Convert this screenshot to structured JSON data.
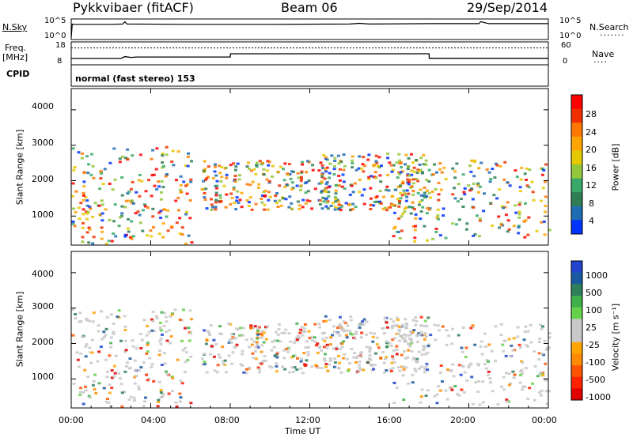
{
  "header": {
    "radar_title": "Pykkvibaer (fitACF)",
    "beam": "Beam 06",
    "date": "29/Sep/2014"
  },
  "summary_panels": {
    "nsky_label": "N.Sky",
    "nsky_ticks": [
      "10^5",
      "10^0"
    ],
    "nsearch_label": "N.Search",
    "nsearch_ticks": [
      "10^5",
      "10^0"
    ],
    "freq_label_1": "Freq.",
    "freq_label_2": "[MHz]",
    "freq_ticks": [
      "18",
      "8"
    ],
    "nave_label": "Nave",
    "nave_ticks": [
      "60",
      "0"
    ],
    "cpid_label": "CPID",
    "cpid_text": "normal (fast stereo) 153"
  },
  "colorbars": {
    "power": {
      "label": "Power [dB]",
      "ticks": [
        "28",
        "24",
        "20",
        "16",
        "12",
        "8",
        "4"
      ],
      "colors": [
        "#ff0000",
        "#f03000",
        "#ff7700",
        "#ffa500",
        "#e6c800",
        "#93c73b",
        "#3aa86a",
        "#2e7d55",
        "#1e6cb4",
        "#0033ff"
      ]
    },
    "velocity": {
      "label": "Velocity [m s⁻¹]",
      "ticks": [
        "1000",
        "500",
        "100",
        "25",
        "-25",
        "-100",
        "-500",
        "-1000"
      ],
      "colors": [
        "#2244cc",
        "#1a5aa0",
        "#2f7f5a",
        "#3fb04a",
        "#66d14a",
        "#c8c8c8",
        "#c8c8c8",
        "#ffa500",
        "#ff8c00",
        "#ff5500",
        "#ff2200",
        "#e00000"
      ]
    }
  },
  "chart_data": [
    {
      "type": "line",
      "name_panel": "N.Sky / N.Search",
      "x_unit": "hours UT",
      "x": [
        0,
        0.05,
        0.1,
        2,
        2.6,
        2.7,
        2.8,
        6,
        10,
        14,
        14.5,
        15,
        18,
        20.5,
        20.6,
        21,
        24
      ],
      "y_log10": [
        0.0,
        4.2,
        4.1,
        4.1,
        4.2,
        4.9,
        4.2,
        4.1,
        4.1,
        4.2,
        4.4,
        4.2,
        4.3,
        4.3,
        4.9,
        4.3,
        4.3
      ],
      "ylim_log10": [
        0,
        5
      ]
    },
    {
      "type": "line",
      "name_panel": "Freq / Nave",
      "x_unit": "hours UT",
      "series": [
        {
          "name": "Freq",
          "x": [
            0,
            2.5,
            2.7,
            3.0,
            3.3,
            8.0,
            8.01,
            18.0,
            18.01,
            24
          ],
          "y": [
            10.2,
            10.2,
            11.2,
            10.8,
            11.0,
            11.0,
            12.8,
            12.8,
            10.3,
            10.3
          ]
        },
        {
          "name": "Nave",
          "x": [
            0,
            24
          ],
          "y": [
            48,
            48
          ]
        }
      ],
      "freq_ylim": [
        8,
        18
      ],
      "nave_ylim": [
        0,
        60
      ]
    },
    {
      "type": "heatmap",
      "name_panel": "Power",
      "xlabel": "",
      "ylabel": "Slant Range [km]",
      "xlim_hours": [
        0,
        24
      ],
      "ylim_km": [
        180,
        4600
      ],
      "yticks": [
        1000,
        2000,
        3000,
        4000
      ],
      "colorbar": "Power [dB]",
      "scatter_bands": [
        {
          "t0": 0.0,
          "t1": 6.0,
          "r0": 250,
          "r1": 3000
        },
        {
          "t0": 6.5,
          "t1": 13.0,
          "r0": 1200,
          "r1": 2600
        },
        {
          "t0": 12.5,
          "t1": 18.0,
          "r0": 1200,
          "r1": 2800
        },
        {
          "t0": 16.0,
          "t1": 24.0,
          "r0": 300,
          "r1": 2600
        }
      ]
    },
    {
      "type": "heatmap",
      "name_panel": "Velocity",
      "xlabel": "Time UT",
      "ylabel": "Slant Range [km]",
      "xlim_hours": [
        0,
        24
      ],
      "ylim_km": [
        180,
        4600
      ],
      "yticks": [
        1000,
        2000,
        3000,
        4000
      ],
      "xticks": [
        "00:00",
        "04:00",
        "08:00",
        "12:00",
        "16:00",
        "20:00",
        "00:00"
      ],
      "colorbar": "Velocity [m s⁻¹]",
      "scatter_bands": [
        {
          "t0": 0.0,
          "t1": 6.0,
          "r0": 250,
          "r1": 3000
        },
        {
          "t0": 6.5,
          "t1": 13.0,
          "r0": 1200,
          "r1": 2600
        },
        {
          "t0": 12.5,
          "t1": 18.0,
          "r0": 1200,
          "r1": 2800
        },
        {
          "t0": 16.0,
          "t1": 24.0,
          "r0": 300,
          "r1": 2600
        }
      ]
    }
  ],
  "axes": {
    "time_label": "Time UT",
    "range_label": "Slant Range [km]",
    "range_ticks": [
      "4000",
      "3000",
      "2000",
      "1000"
    ],
    "time_ticks": [
      "00:00",
      "04:00",
      "08:00",
      "12:00",
      "16:00",
      "20:00",
      "00:00"
    ]
  }
}
